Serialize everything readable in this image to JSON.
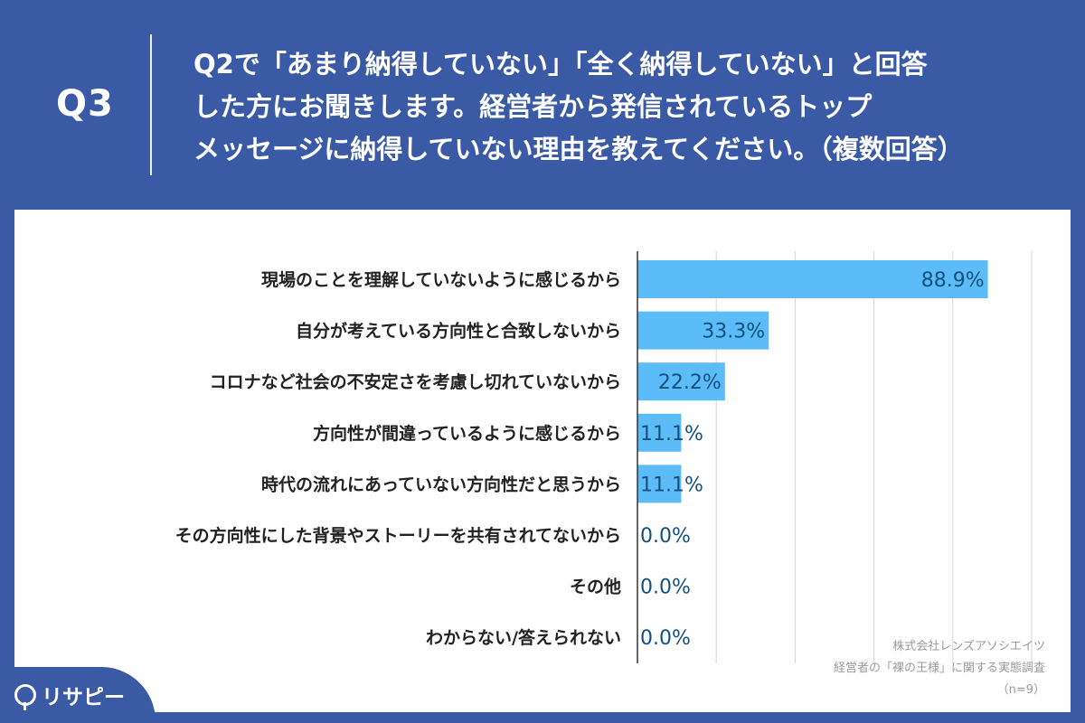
{
  "header": {
    "q_label": "Q3",
    "question_lines": [
      "Q2で「あまり納得していない」「全く納得していない」と回答",
      "した方にお聞きします。経営者から発信されているトップ",
      "メッセージに納得していない理由を教えてください。（複数回答）"
    ]
  },
  "chart_data": {
    "type": "bar",
    "orientation": "horizontal",
    "categories": [
      "現場のことを理解していないように感じるから",
      "自分が考えている方向性と合致しないから",
      "コロナなど社会の不安定さを考慮し切れていないから",
      "方向性が間違っているように感じるから",
      "時代の流れにあっていない方向性だと思うから",
      "その方向性にした背景やストーリーを共有されてないから",
      "その他",
      "わからない/答えられない"
    ],
    "values": [
      88.9,
      33.3,
      22.2,
      11.1,
      11.1,
      0.0,
      0.0,
      0.0
    ],
    "value_labels": [
      "88.9%",
      "33.3%",
      "22.2%",
      "11.1%",
      "11.1%",
      "0.0%",
      "0.0%",
      "0.0%"
    ],
    "xlim": [
      0,
      100
    ],
    "grid": true,
    "bar_color": "#5bbcf8"
  },
  "source": {
    "company": "株式会社レンズアソシエイツ",
    "survey": "経営者の「裸の王様」に関する実態調査",
    "n": "（n=9）"
  },
  "logo": {
    "text": "リサピー"
  }
}
